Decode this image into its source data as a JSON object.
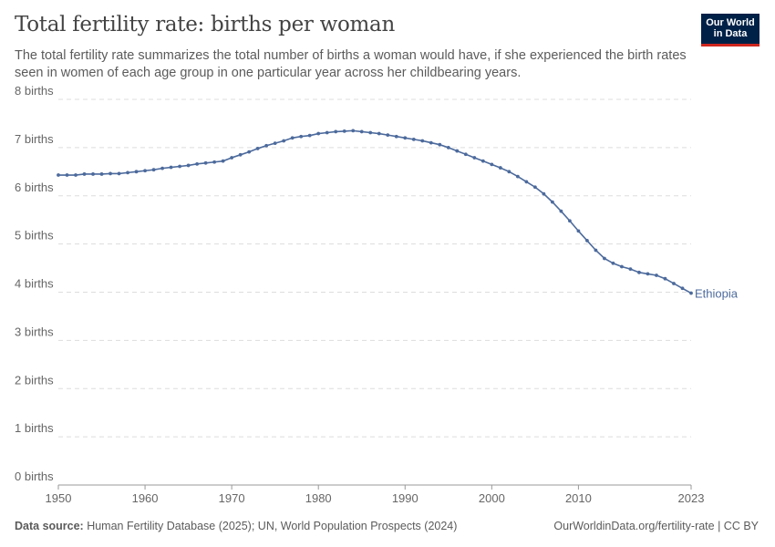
{
  "header": {
    "title": "Total fertility rate: births per woman",
    "subtitle": "The total fertility rate summarizes the total number of births a woman would have, if she experienced the birth rates seen in women of each age group in one particular year across her childbearing years.",
    "logo_line1": "Our World",
    "logo_line2": "in Data"
  },
  "footer": {
    "source_label": "Data source:",
    "source_text": " Human Fertility Database (2025); UN, World Population Prospects (2024)",
    "url": "OurWorldinData.org/fertility-rate | CC BY"
  },
  "colors": {
    "series": "#4c6a9c",
    "grid": "#dddddd",
    "text": "#666666"
  },
  "chart_data": {
    "type": "line",
    "title": "Total fertility rate: births per woman",
    "xlim": [
      1950,
      2023
    ],
    "ylim": [
      0,
      8
    ],
    "grid": "horizontal dashed",
    "y_ticks": [
      {
        "v": 0,
        "label": "0 births"
      },
      {
        "v": 1,
        "label": "1 births"
      },
      {
        "v": 2,
        "label": "2 births"
      },
      {
        "v": 3,
        "label": "3 births"
      },
      {
        "v": 4,
        "label": "4 births"
      },
      {
        "v": 5,
        "label": "5 births"
      },
      {
        "v": 6,
        "label": "6 births"
      },
      {
        "v": 7,
        "label": "7 births"
      },
      {
        "v": 8,
        "label": "8 births"
      }
    ],
    "x_ticks": [
      {
        "v": 1950,
        "label": "1950"
      },
      {
        "v": 1960,
        "label": "1960"
      },
      {
        "v": 1970,
        "label": "1970"
      },
      {
        "v": 1980,
        "label": "1980"
      },
      {
        "v": 1990,
        "label": "1990"
      },
      {
        "v": 2000,
        "label": "2000"
      },
      {
        "v": 2010,
        "label": "2010"
      },
      {
        "v": 2023,
        "label": "2023"
      }
    ],
    "series": [
      {
        "name": "Ethiopia",
        "x_start": 1950,
        "values": [
          6.43,
          6.43,
          6.43,
          6.45,
          6.45,
          6.45,
          6.46,
          6.46,
          6.48,
          6.5,
          6.52,
          6.54,
          6.57,
          6.59,
          6.61,
          6.63,
          6.66,
          6.68,
          6.7,
          6.72,
          6.79,
          6.85,
          6.91,
          6.98,
          7.04,
          7.09,
          7.14,
          7.2,
          7.23,
          7.25,
          7.29,
          7.31,
          7.33,
          7.34,
          7.35,
          7.33,
          7.31,
          7.29,
          7.26,
          7.23,
          7.2,
          7.17,
          7.14,
          7.1,
          7.06,
          7.0,
          6.93,
          6.86,
          6.79,
          6.72,
          6.65,
          6.58,
          6.5,
          6.4,
          6.29,
          6.18,
          6.04,
          5.87,
          5.68,
          5.48,
          5.27,
          5.07,
          4.87,
          4.7,
          4.6,
          4.53,
          4.48,
          4.41,
          4.38,
          4.35,
          4.28,
          4.18,
          4.08,
          3.98
        ]
      }
    ]
  }
}
